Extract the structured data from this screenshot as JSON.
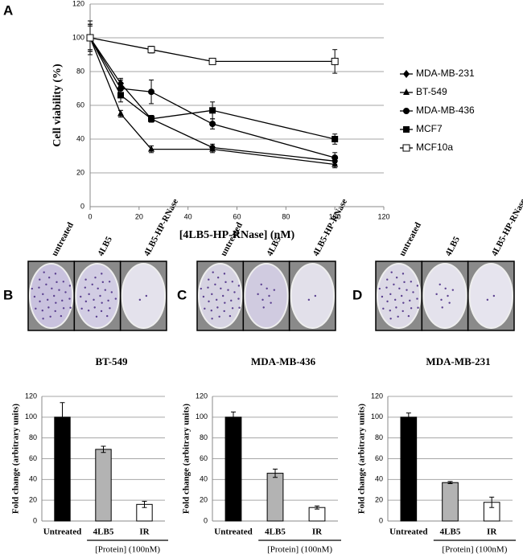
{
  "panel_labels": [
    "A",
    "B",
    "C",
    "D"
  ],
  "plates": [
    [
      "untreated",
      "4LB5",
      "4LB5-HP-RNase"
    ],
    [
      "untreated",
      "4LB5",
      "4LB5-HP-RNase"
    ],
    [
      "untreated",
      "4LB5",
      "4LB5-HP-RNase"
    ]
  ],
  "chart_data": [
    {
      "type": "line",
      "x_label": "[4LB5-HP-RNase] (nM)",
      "y_label": "Cell viability (%)",
      "xlim": [
        0,
        120
      ],
      "xticks": [
        0,
        20,
        40,
        60,
        80,
        100,
        120
      ],
      "ylim": [
        0,
        120
      ],
      "yticks": [
        0,
        20,
        40,
        60,
        80,
        100,
        120
      ],
      "grid": true,
      "legend": "right",
      "series": [
        {
          "name": "MDA-MB-231",
          "marker": "diamond",
          "color": "#000000",
          "x": [
            0,
            12.5,
            25,
            50,
            100
          ],
          "values": [
            100,
            73,
            52,
            35,
            27
          ],
          "errors": [
            8,
            3,
            2,
            2,
            2
          ]
        },
        {
          "name": "BT-549",
          "marker": "triangle",
          "color": "#000000",
          "x": [
            0,
            12.5,
            25,
            50,
            100
          ],
          "values": [
            100,
            55,
            34,
            34,
            25
          ],
          "errors": [
            8,
            2,
            2,
            2,
            2
          ]
        },
        {
          "name": "MDA-MB-436",
          "marker": "circle",
          "color": "#000000",
          "x": [
            0,
            12.5,
            25,
            50,
            100
          ],
          "values": [
            100,
            70,
            68,
            49,
            29
          ],
          "errors": [
            10,
            5,
            7,
            3,
            3
          ]
        },
        {
          "name": "MCF7",
          "marker": "square",
          "color": "#000000",
          "x": [
            0,
            12.5,
            25,
            50,
            100
          ],
          "values": [
            100,
            66,
            52,
            57,
            40
          ],
          "errors": [
            7,
            4,
            2,
            5,
            3
          ]
        },
        {
          "name": "MCF10a",
          "marker": "open-square",
          "color": "#000000",
          "x": [
            0,
            25,
            50,
            100
          ],
          "values": [
            100,
            93,
            86,
            86
          ],
          "errors": [
            10,
            2,
            1,
            7
          ]
        }
      ]
    },
    {
      "type": "bar",
      "title": "BT-549",
      "y_label": "Fold change (arbitrary units)",
      "annotation": "[Protein] (100nM)",
      "categories": [
        "Untreated",
        "4LB5",
        "IR"
      ],
      "values": [
        100,
        69,
        16
      ],
      "errors": [
        14,
        3,
        3
      ],
      "colors": [
        "#000000",
        "#b3b3b3",
        "#ffffff"
      ],
      "ylim": [
        0,
        120
      ],
      "yticks": [
        0,
        20,
        40,
        60,
        80,
        100,
        120
      ],
      "grid": true
    },
    {
      "type": "bar",
      "title": "MDA-MB-436",
      "y_label": "Fold change (arbitrary units)",
      "annotation": "[Protein] (100nM)",
      "categories": [
        "Untreated",
        "4LB5",
        "IR"
      ],
      "values": [
        100,
        46,
        13
      ],
      "errors": [
        5,
        4,
        1.5
      ],
      "colors": [
        "#000000",
        "#b3b3b3",
        "#ffffff"
      ],
      "ylim": [
        0,
        120
      ],
      "yticks": [
        0,
        20,
        40,
        60,
        80,
        100,
        120
      ],
      "grid": true
    },
    {
      "type": "bar",
      "title": "MDA-MB-231",
      "y_label": "Fold change (arbitrary units)",
      "annotation": "[Protein] (100nM)",
      "categories": [
        "Untreated",
        "4LB5",
        "IR"
      ],
      "values": [
        100,
        37,
        18
      ],
      "errors": [
        4,
        1,
        5
      ],
      "colors": [
        "#000000",
        "#b3b3b3",
        "#ffffff"
      ],
      "ylim": [
        0,
        120
      ],
      "yticks": [
        0,
        20,
        40,
        60,
        80,
        100,
        120
      ],
      "grid": true
    }
  ]
}
